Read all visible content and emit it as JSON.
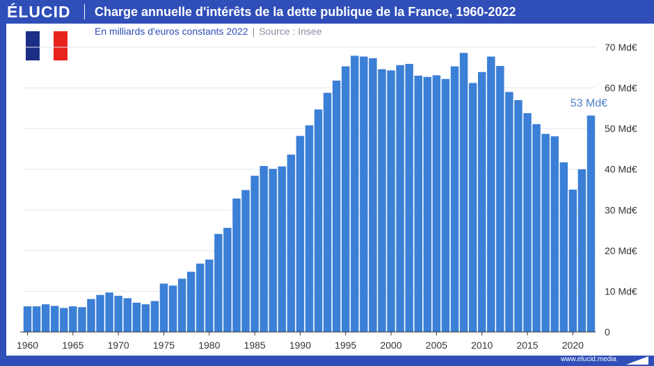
{
  "brand": {
    "logo": "ÉLUCID",
    "url": "www.elucid.media"
  },
  "header": {
    "title": "Charge annuelle d'intérêts de la dette publique de la France, 1960-2022",
    "subtitle": "En milliards d'euros constants 2022",
    "separator": "|",
    "source": "Source : Insee"
  },
  "colors": {
    "bar": "#3b7fd6",
    "brand": "#2f4eb8",
    "flag_blue": "#1b2e86",
    "flag_white": "#ffffff",
    "flag_red": "#e8231d"
  },
  "icons": {
    "flag": "france-flag-icon"
  },
  "chart_data": {
    "type": "bar",
    "x_ticks": [
      "1960",
      "1965",
      "1970",
      "1975",
      "1980",
      "1985",
      "1990",
      "1995",
      "2000",
      "2005",
      "2010",
      "2015",
      "2020"
    ],
    "y_ticks": [
      "0",
      "10 Md€",
      "20 Md€",
      "30 Md€",
      "40 Md€",
      "50 Md€",
      "60 Md€",
      "70 Md€"
    ],
    "ylim": [
      0,
      70
    ],
    "grid": true,
    "y_axis_side": "right",
    "annotation": {
      "text": "53 Md€",
      "year": 2022
    },
    "categories": [
      1960,
      1961,
      1962,
      1963,
      1964,
      1965,
      1966,
      1967,
      1968,
      1969,
      1970,
      1971,
      1972,
      1973,
      1974,
      1975,
      1976,
      1977,
      1978,
      1979,
      1980,
      1981,
      1982,
      1983,
      1984,
      1985,
      1986,
      1987,
      1988,
      1989,
      1990,
      1991,
      1992,
      1993,
      1994,
      1995,
      1996,
      1997,
      1998,
      1999,
      2000,
      2001,
      2002,
      2003,
      2004,
      2005,
      2006,
      2007,
      2008,
      2009,
      2010,
      2011,
      2012,
      2013,
      2014,
      2015,
      2016,
      2017,
      2018,
      2019,
      2020,
      2021,
      2022
    ],
    "values": [
      6.3,
      6.3,
      6.8,
      6.4,
      5.9,
      6.3,
      6.1,
      8.1,
      9.1,
      9.7,
      8.9,
      8.3,
      7.2,
      6.8,
      7.6,
      11.9,
      11.4,
      13.1,
      14.8,
      16.8,
      17.8,
      24.1,
      25.6,
      32.8,
      34.9,
      38.4,
      40.8,
      40.1,
      40.7,
      43.6,
      48.2,
      50.8,
      54.7,
      58.8,
      61.8,
      65.3,
      67.9,
      67.7,
      67.3,
      64.6,
      64.3,
      65.6,
      65.9,
      63.0,
      62.7,
      63.1,
      62.2,
      65.3,
      68.6,
      61.2,
      63.9,
      67.7,
      65.4,
      59.0,
      57.0,
      53.8,
      51.1,
      48.7,
      48.1,
      41.7,
      35.0,
      40.0,
      53.2
    ]
  }
}
